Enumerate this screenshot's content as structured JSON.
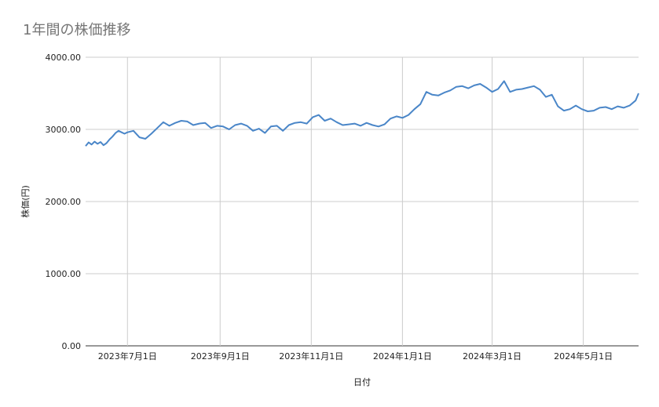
{
  "chart_data": {
    "type": "line",
    "title": "1年間の株価推移",
    "xlabel": "日付",
    "ylabel": "株価(円)",
    "ylim": [
      0,
      4000
    ],
    "yticks": [
      "0.00",
      "1000.00",
      "2000.00",
      "3000.00",
      "4000.00"
    ],
    "xticks": [
      {
        "date": "2023-07-01",
        "label": "2023年7月1日"
      },
      {
        "date": "2023-09-01",
        "label": "2023年9月1日"
      },
      {
        "date": "2023-11-01",
        "label": "2023年11月1日"
      },
      {
        "date": "2024-01-01",
        "label": "2024年1月1日"
      },
      {
        "date": "2024-03-01",
        "label": "2024年3月1日"
      },
      {
        "date": "2024-05-01",
        "label": "2024年5月1日"
      }
    ],
    "xlim": [
      "2023-06-03",
      "2024-06-07"
    ],
    "grid": true,
    "line_color": "#4a86c8",
    "series": [
      {
        "x": [
          "2023-06-03",
          "2023-06-05",
          "2023-06-07",
          "2023-06-09",
          "2023-06-11",
          "2023-06-13",
          "2023-06-15",
          "2023-06-17",
          "2023-06-19",
          "2023-06-21",
          "2023-06-23",
          "2023-06-25",
          "2023-06-27",
          "2023-06-29",
          "2023-07-01",
          "2023-07-05",
          "2023-07-09",
          "2023-07-13",
          "2023-07-17",
          "2023-07-21",
          "2023-07-25",
          "2023-07-29",
          "2023-08-02",
          "2023-08-06",
          "2023-08-10",
          "2023-08-14",
          "2023-08-18",
          "2023-08-22",
          "2023-08-26",
          "2023-08-30",
          "2023-09-03",
          "2023-09-07",
          "2023-09-11",
          "2023-09-15",
          "2023-09-19",
          "2023-09-23",
          "2023-09-27",
          "2023-10-01",
          "2023-10-05",
          "2023-10-09",
          "2023-10-13",
          "2023-10-17",
          "2023-10-21",
          "2023-10-25",
          "2023-10-29",
          "2023-11-02",
          "2023-11-06",
          "2023-11-10",
          "2023-11-14",
          "2023-11-18",
          "2023-11-22",
          "2023-11-26",
          "2023-11-30",
          "2023-12-04",
          "2023-12-08",
          "2023-12-12",
          "2023-12-16",
          "2023-12-20",
          "2023-12-24",
          "2023-12-28",
          "2024-01-01",
          "2024-01-05",
          "2024-01-09",
          "2024-01-13",
          "2024-01-17",
          "2024-01-21",
          "2024-01-25",
          "2024-01-29",
          "2024-02-02",
          "2024-02-06",
          "2024-02-10",
          "2024-02-14",
          "2024-02-18",
          "2024-02-22",
          "2024-02-26",
          "2024-03-01",
          "2024-03-05",
          "2024-03-09",
          "2024-03-13",
          "2024-03-17",
          "2024-03-21",
          "2024-03-25",
          "2024-03-29",
          "2024-04-02",
          "2024-04-06",
          "2024-04-10",
          "2024-04-14",
          "2024-04-18",
          "2024-04-22",
          "2024-04-26",
          "2024-04-30",
          "2024-05-04",
          "2024-05-08",
          "2024-05-12",
          "2024-05-16",
          "2024-05-20",
          "2024-05-24",
          "2024-05-28",
          "2024-06-01",
          "2024-06-05",
          "2024-06-07"
        ],
        "values": [
          2770,
          2820,
          2790,
          2830,
          2800,
          2825,
          2780,
          2810,
          2860,
          2900,
          2950,
          2980,
          2960,
          2940,
          2960,
          2980,
          2890,
          2870,
          2940,
          3020,
          3100,
          3050,
          3090,
          3120,
          3110,
          3060,
          3080,
          3090,
          3020,
          3050,
          3040,
          3000,
          3060,
          3080,
          3050,
          2980,
          3010,
          2950,
          3040,
          3050,
          2980,
          3060,
          3090,
          3100,
          3080,
          3170,
          3200,
          3120,
          3150,
          3100,
          3060,
          3070,
          3080,
          3050,
          3090,
          3060,
          3040,
          3070,
          3150,
          3180,
          3160,
          3200,
          3280,
          3350,
          3520,
          3480,
          3470,
          3510,
          3540,
          3590,
          3600,
          3570,
          3610,
          3630,
          3580,
          3520,
          3560,
          3670,
          3520,
          3550,
          3560,
          3580,
          3600,
          3550,
          3450,
          3480,
          3320,
          3260,
          3280,
          3330,
          3280,
          3250,
          3260,
          3300,
          3310,
          3280,
          3320,
          3300,
          3330,
          3400,
          3500
        ]
      }
    ]
  }
}
